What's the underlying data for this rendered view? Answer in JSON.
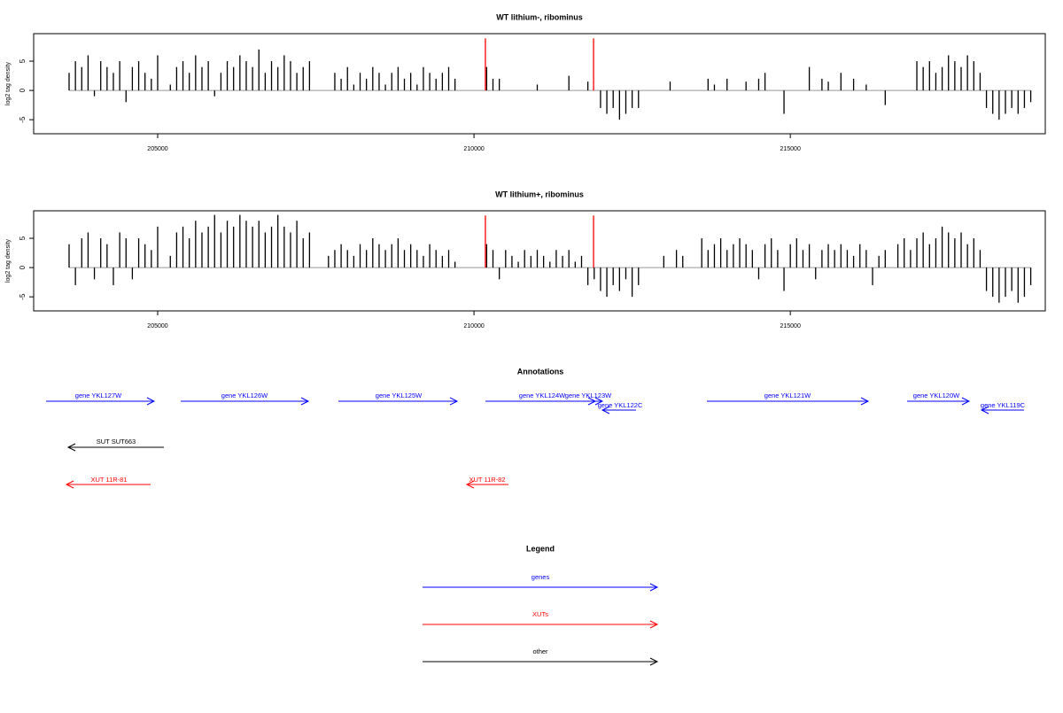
{
  "chart_data": [
    {
      "type": "bar",
      "title": "WT lithium-, ribominus",
      "y_label": "log2 tag density",
      "x": [
        203600,
        203700,
        203800,
        203900,
        204000,
        204100,
        204200,
        204300,
        204400,
        204500,
        204600,
        204700,
        204800,
        204900,
        205000,
        205100,
        205200,
        205300,
        205400,
        205500,
        205600,
        205700,
        205800,
        205900,
        206000,
        206100,
        206200,
        206300,
        206400,
        206500,
        206600,
        206700,
        206800,
        206900,
        207000,
        207100,
        207200,
        207300,
        207400,
        207500,
        207600,
        207700,
        207800,
        207900,
        208000,
        208100,
        208200,
        208300,
        208400,
        208500,
        208600,
        208700,
        208800,
        208900,
        209000,
        209100,
        209200,
        209300,
        209400,
        209500,
        209600,
        209700,
        209800,
        209900,
        210000,
        210100,
        210200,
        210300,
        210400,
        210500,
        210600,
        210700,
        210800,
        210900,
        211000,
        211100,
        211200,
        211300,
        211400,
        211500,
        211600,
        211700,
        211800,
        211900,
        212000,
        212100,
        212200,
        212300,
        212400,
        212500,
        212600,
        212700,
        212800,
        212900,
        213000,
        213100,
        213200,
        213300,
        213400,
        213500,
        213600,
        213700,
        213800,
        213900,
        214000,
        214100,
        214200,
        214300,
        214400,
        214500,
        214600,
        214700,
        214800,
        214900,
        215000,
        215100,
        215200,
        215300,
        215400,
        215500,
        215600,
        215700,
        215800,
        215900,
        216000,
        216100,
        216200,
        216300,
        216400,
        216500,
        216600,
        216700,
        216800,
        216900,
        217000,
        217100,
        217200,
        217300,
        217400,
        217500,
        217600,
        217700,
        217800,
        217900,
        218000,
        218100,
        218200,
        218300,
        218400,
        218500,
        218600,
        218700,
        218800
      ],
      "values": [
        3,
        5,
        4,
        6,
        -1,
        5,
        4,
        3,
        5,
        -2,
        4,
        5,
        3,
        2,
        6,
        0,
        1,
        4,
        5,
        3,
        6,
        4,
        5,
        -1,
        3,
        5,
        4,
        6,
        5,
        4,
        7,
        3,
        5,
        4,
        6,
        5,
        3,
        4,
        5,
        0,
        0,
        0,
        3,
        2,
        4,
        1,
        3,
        2,
        4,
        3,
        1,
        3,
        4,
        2,
        3,
        1,
        4,
        3,
        2,
        3,
        4,
        2,
        0,
        0,
        0,
        0,
        4,
        2,
        2,
        0,
        0,
        0,
        0,
        0,
        1,
        0,
        0,
        0,
        0,
        2.5,
        0,
        0,
        1.5,
        0,
        -3,
        -4,
        -3,
        -5,
        -4,
        -3,
        -3,
        0,
        0,
        0,
        0,
        1.5,
        0,
        0,
        0,
        0,
        0,
        2,
        1,
        0,
        2,
        0,
        0,
        1.5,
        0,
        2,
        3,
        0,
        0,
        -4,
        0,
        0,
        0,
        4,
        0,
        2,
        1.5,
        0,
        3,
        0,
        2,
        0,
        1,
        0,
        0,
        -2.5,
        0,
        0,
        0,
        0,
        5,
        4,
        5,
        3,
        4,
        6,
        5,
        4,
        6,
        5,
        3,
        -3,
        -4,
        -5,
        -4,
        -3,
        -4,
        -3,
        -2
      ],
      "color": "#000000",
      "highlight": {
        "x": [
          210180,
          211890
        ],
        "values": [
          8.9,
          8.9
        ],
        "color": "#ff0000"
      },
      "xlim": [
        203040,
        219030
      ],
      "ylim": [
        -7.4,
        9.7
      ],
      "xticks": [
        205000,
        210000,
        215000
      ],
      "yticks": [
        -5,
        0,
        5
      ]
    },
    {
      "type": "bar",
      "title": "WT lithium+, ribominus",
      "y_label": "log2 tag density",
      "x": [
        203600,
        203700,
        203800,
        203900,
        204000,
        204100,
        204200,
        204300,
        204400,
        204500,
        204600,
        204700,
        204800,
        204900,
        205000,
        205100,
        205200,
        205300,
        205400,
        205500,
        205600,
        205700,
        205800,
        205900,
        206000,
        206100,
        206200,
        206300,
        206400,
        206500,
        206600,
        206700,
        206800,
        206900,
        207000,
        207100,
        207200,
        207300,
        207400,
        207500,
        207600,
        207700,
        207800,
        207900,
        208000,
        208100,
        208200,
        208300,
        208400,
        208500,
        208600,
        208700,
        208800,
        208900,
        209000,
        209100,
        209200,
        209300,
        209400,
        209500,
        209600,
        209700,
        209800,
        209900,
        210000,
        210100,
        210200,
        210300,
        210400,
        210500,
        210600,
        210700,
        210800,
        210900,
        211000,
        211100,
        211200,
        211300,
        211400,
        211500,
        211600,
        211700,
        211800,
        211900,
        212000,
        212100,
        212200,
        212300,
        212400,
        212500,
        212600,
        212700,
        212800,
        212900,
        213000,
        213100,
        213200,
        213300,
        213400,
        213500,
        213600,
        213700,
        213800,
        213900,
        214000,
        214100,
        214200,
        214300,
        214400,
        214500,
        214600,
        214700,
        214800,
        214900,
        215000,
        215100,
        215200,
        215300,
        215400,
        215500,
        215600,
        215700,
        215800,
        215900,
        216000,
        216100,
        216200,
        216300,
        216400,
        216500,
        216600,
        216700,
        216800,
        216900,
        217000,
        217100,
        217200,
        217300,
        217400,
        217500,
        217600,
        217700,
        217800,
        217900,
        218000,
        218100,
        218200,
        218300,
        218400,
        218500,
        218600,
        218700,
        218800
      ],
      "values": [
        4,
        -3,
        5,
        6,
        -2,
        5,
        4,
        -3,
        6,
        5,
        -2,
        5,
        4,
        3,
        7,
        0,
        2,
        6,
        7,
        5,
        8,
        6,
        7,
        9,
        6,
        8,
        7,
        9,
        8,
        7,
        8,
        6,
        7,
        9,
        7,
        6,
        8,
        5,
        6,
        0,
        0,
        2,
        3,
        4,
        3,
        2,
        4,
        3,
        5,
        4,
        3,
        4,
        5,
        3,
        4,
        3,
        2,
        4,
        3,
        2,
        3,
        1,
        0,
        0,
        0,
        0,
        4,
        3,
        -2,
        3,
        2,
        1,
        3,
        2,
        3,
        2,
        1,
        3,
        2,
        3,
        1,
        2,
        -3,
        -2,
        -4,
        -5,
        -3,
        -4,
        -2,
        -5,
        -3,
        0,
        0,
        0,
        2,
        0,
        3,
        2,
        0,
        0,
        5,
        3,
        4,
        5,
        3,
        4,
        5,
        4,
        3,
        -2,
        4,
        5,
        3,
        -4,
        4,
        5,
        3,
        4,
        -2,
        3,
        4,
        3,
        4,
        3,
        2,
        4,
        3,
        -3,
        2,
        3,
        0,
        4,
        5,
        3,
        5,
        6,
        4,
        5,
        7,
        6,
        5,
        6,
        4,
        5,
        3,
        -4,
        -5,
        -6,
        -5,
        -4,
        -6,
        -5,
        -3
      ],
      "color": "#000000",
      "highlight": {
        "x": [
          210180,
          211890
        ],
        "values": [
          8.9,
          8.9
        ],
        "color": "#ff0000"
      },
      "xlim": [
        203040,
        219030
      ],
      "ylim": [
        -7.4,
        9.7
      ],
      "xticks": [
        205000,
        210000,
        215000
      ],
      "yticks": [
        -5,
        0,
        5
      ]
    }
  ],
  "annotations": {
    "title": "Annotations",
    "items": [
      {
        "label": "gene YKL127W",
        "color": "#0000ff"
      },
      {
        "label": "gene YKL126W",
        "color": "#0000ff"
      },
      {
        "label": "gene YKL125W",
        "color": "#0000ff"
      },
      {
        "label": "gene YKL124W",
        "color": "#0000ff"
      },
      {
        "label": "gene YKL123W",
        "color": "#0000ff"
      },
      {
        "label": "gene YKL122C",
        "color": "#0000ff"
      },
      {
        "label": "gene YKL121W",
        "color": "#0000ff"
      },
      {
        "label": "gene YKL120W",
        "color": "#0000ff"
      },
      {
        "label": "gene YKL119C",
        "color": "#0000ff"
      },
      {
        "label": "SUT SUT663",
        "color": "#000000"
      },
      {
        "label": "XUT 11R-81",
        "color": "#ff0000"
      },
      {
        "label": "XUT 11R-82",
        "color": "#ff0000"
      }
    ]
  },
  "legend": {
    "title": "Legend",
    "items": [
      {
        "label": "genes",
        "color": "#0000ff"
      },
      {
        "label": "XUTs",
        "color": "#ff0000"
      },
      {
        "label": "other",
        "color": "#000000"
      }
    ]
  }
}
